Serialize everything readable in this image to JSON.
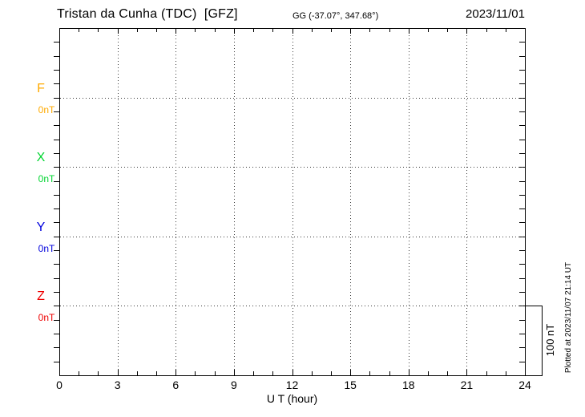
{
  "header": {
    "station_title": "Tristan da Cunha (TDC)  [GFZ]",
    "coords": "GG (-37.07°, 347.68°)",
    "date": "2023/11/01"
  },
  "components": [
    {
      "label": "F",
      "unit": "0nT",
      "color": "#ffaa00"
    },
    {
      "label": "X",
      "unit": "0nT",
      "color": "#00d530"
    },
    {
      "label": "Y",
      "unit": "0nT",
      "color": "#0000dd"
    },
    {
      "label": "Z",
      "unit": "0nT",
      "color": "#ee0000"
    }
  ],
  "xaxis": {
    "label": "U T (hour)",
    "ticks": [
      "0",
      "3",
      "6",
      "9",
      "12",
      "15",
      "18",
      "21",
      "24"
    ]
  },
  "scale_bar": {
    "label": "100 nT"
  },
  "footer_note": "Plotted at 2023/11/07 21:14 UT",
  "chart_data": {
    "type": "line",
    "title": "Tristan da Cunha (TDC) [GFZ] magnetogram 2023/11/01",
    "xlabel": "U T (hour)",
    "x_range": [
      0,
      24
    ],
    "x_major_ticks": [
      0,
      3,
      6,
      9,
      12,
      15,
      18,
      21,
      24
    ],
    "x_minor_tick_step_hours": 1,
    "y_division_nT": 100,
    "y_minor_tick_nT": 20,
    "grid": "dotted vertical lines every 3 hours; dotted horizontal baseline per component",
    "legend_position": "left margin (component letters beside their baselines)",
    "series": [
      {
        "name": "F",
        "baseline_nT": 0,
        "baseline_label": "0nT",
        "color": "#ffaa00",
        "x": [],
        "values": []
      },
      {
        "name": "X",
        "baseline_nT": 0,
        "baseline_label": "0nT",
        "color": "#00d530",
        "x": [],
        "values": []
      },
      {
        "name": "Y",
        "baseline_nT": 0,
        "baseline_label": "0nT",
        "color": "#0000dd",
        "x": [],
        "values": []
      },
      {
        "name": "Z",
        "baseline_nT": 0,
        "baseline_label": "0nT",
        "color": "#ee0000",
        "x": [],
        "values": []
      }
    ],
    "note": "No trace data is drawn for this day — only empty baselines (0 nT) are shown.",
    "scale_bar": {
      "label": "100 nT",
      "spans": "from Z baseline down to bottom axis"
    }
  }
}
